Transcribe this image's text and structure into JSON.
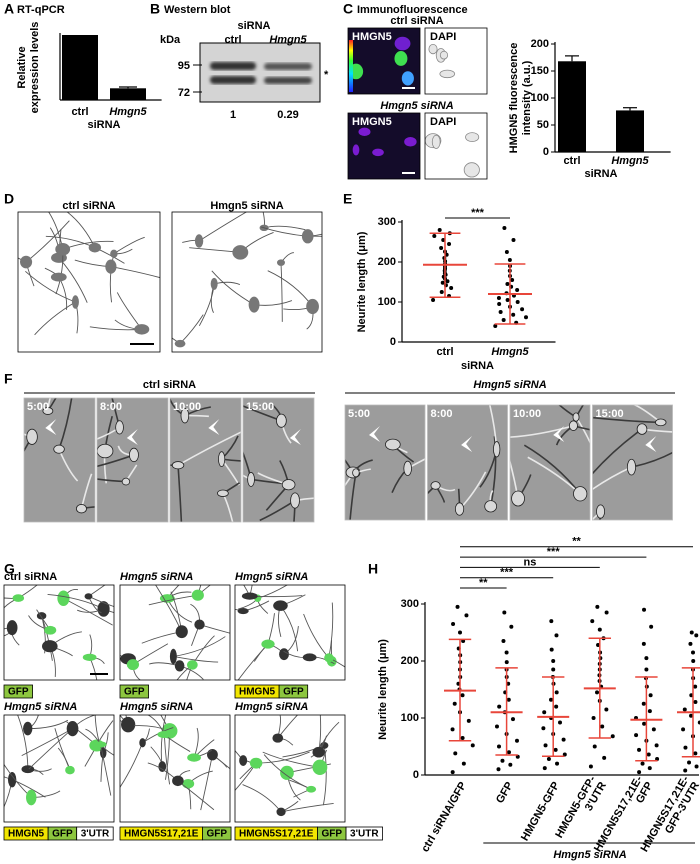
{
  "panels": {
    "A": {
      "letter": "A",
      "title": "RT-qPCR"
    },
    "B": {
      "letter": "B",
      "title": "Western blot",
      "treatment": "siRNA",
      "unit": "kDa",
      "lanes": [
        "ctrl",
        "Hmgn5"
      ],
      "markers": [
        95,
        72
      ],
      "band_note": "*",
      "ratios": [
        1,
        0.29
      ]
    },
    "C": {
      "letter": "C",
      "title": "Immunofluorescence",
      "rows": [
        {
          "label": "ctrl siRNA",
          "channels": [
            "HMGN5",
            "DAPI"
          ]
        },
        {
          "label": "Hmgn5 siRNA",
          "channels": [
            "HMGN5",
            "DAPI"
          ]
        }
      ]
    },
    "D": {
      "letter": "D",
      "images": [
        "ctrl siRNA",
        "Hmgn5 siRNA"
      ]
    },
    "E": {
      "letter": "E"
    },
    "F": {
      "letter": "F",
      "groups": [
        {
          "label": "ctrl siRNA",
          "times": [
            "5:00",
            "8:00",
            "10:00",
            "15:00"
          ]
        },
        {
          "label": "Hmgn5 siRNA",
          "times": [
            "5:00",
            "8:00",
            "10:00",
            "15:00"
          ]
        }
      ]
    },
    "G": {
      "letter": "G",
      "images": [
        {
          "label": "ctrl siRNA",
          "construct": [
            {
              "text": "GFP",
              "color": "#8dc63f"
            }
          ]
        },
        {
          "label": "Hmgn5 siRNA",
          "construct": [
            {
              "text": "GFP",
              "color": "#8dc63f"
            }
          ]
        },
        {
          "label": "Hmgn5 siRNA",
          "construct": [
            {
              "text": "HMGN5",
              "color": "#f2e600"
            },
            {
              "text": "GFP",
              "color": "#8dc63f"
            }
          ]
        },
        {
          "label": "Hmgn5 siRNA",
          "construct": [
            {
              "text": "HMGN5",
              "color": "#f2e600"
            },
            {
              "text": "GFP",
              "color": "#8dc63f"
            },
            {
              "text": "3'UTR",
              "color": "#ffffff"
            }
          ]
        },
        {
          "label": "Hmgn5 siRNA",
          "construct": [
            {
              "text": "HMGN5S17,21E",
              "color": "#f2e600"
            },
            {
              "text": "GFP",
              "color": "#8dc63f"
            }
          ]
        },
        {
          "label": "Hmgn5 siRNA",
          "construct": [
            {
              "text": "HMGN5S17,21E",
              "color": "#f2e600"
            },
            {
              "text": "GFP",
              "color": "#8dc63f"
            },
            {
              "text": "3'UTR",
              "color": "#ffffff"
            }
          ]
        }
      ]
    },
    "H": {
      "letter": "H"
    }
  },
  "chart_data": [
    {
      "type": "bar",
      "categories": [
        "ctrl",
        "Hmgn5"
      ],
      "values": [
        100,
        18
      ],
      "errors": [
        null,
        2
      ],
      "ylabel": [
        "Relative",
        "expression levels"
      ],
      "xlabel": "siRNA",
      "ylim": [
        0,
        100
      ],
      "color": "#000000"
    },
    {
      "type": "bar",
      "categories": [
        "ctrl",
        "Hmgn5"
      ],
      "values": [
        168,
        77
      ],
      "errors": [
        10,
        5
      ],
      "ylabel": [
        "HMGN5 fluorescence",
        "intensity (a.u.)"
      ],
      "xlabel": "siRNA",
      "ylim": [
        0,
        200
      ],
      "yticks": [
        0,
        50,
        100,
        150,
        200
      ],
      "color": "#000000"
    },
    {
      "type": "dotplot",
      "categories": [
        "ctrl",
        "Hmgn5"
      ],
      "xlabel": "siRNA",
      "ylabel": "Neurite length (μm)",
      "ylim": [
        0,
        300
      ],
      "yticks": [
        0,
        100,
        200,
        300
      ],
      "point_color": "#000000",
      "stat_color": "#e8463a",
      "means": [
        193,
        120
      ],
      "lower": [
        112,
        45
      ],
      "upper": [
        272,
        195
      ],
      "significance": [
        "***"
      ],
      "points": [
        [
          105,
          115,
          125,
          135,
          142,
          148,
          152,
          158,
          163,
          168,
          172,
          178,
          183,
          188,
          195,
          202,
          210,
          218,
          226,
          235,
          245,
          255,
          265,
          272,
          280
        ],
        [
          40,
          48,
          55,
          62,
          68,
          75,
          82,
          88,
          95,
          100,
          105,
          110,
          116,
          122,
          130,
          138,
          145,
          155,
          165,
          178,
          190,
          205,
          225,
          255,
          285
        ]
      ]
    },
    {
      "type": "dotplot",
      "categories": [
        [
          "ctrl siRNA/GFP"
        ],
        [
          "GFP"
        ],
        [
          "HMGN5-GFP"
        ],
        [
          "HMGN5-GFP-",
          "3'UTR"
        ],
        [
          "HMGN5S17,21E-",
          "GFP"
        ],
        [
          "HMGN5S17,21E-",
          "GFP-3'UTR"
        ]
      ],
      "group_label": "Hmgn5 siRNA",
      "ylabel": "Neurite length (μm)",
      "ylim": [
        0,
        300
      ],
      "yticks": [
        0,
        100,
        200,
        300
      ],
      "point_color": "#000000",
      "stat_color": "#e8463a",
      "means": [
        148,
        110,
        102,
        152,
        97,
        110
      ],
      "lower": [
        60,
        35,
        33,
        65,
        25,
        32
      ],
      "upper": [
        238,
        188,
        172,
        240,
        172,
        188
      ],
      "significance": [
        "**",
        "***",
        "ns",
        "***",
        "**"
      ],
      "points": [
        [
          5,
          20,
          38,
          52,
          65,
          80,
          95,
          110,
          125,
          140,
          150,
          160,
          172,
          185,
          198,
          210,
          222,
          235,
          250,
          265,
          280,
          295
        ],
        [
          10,
          18,
          25,
          32,
          40,
          50,
          60,
          72,
          85,
          98,
          110,
          120,
          132,
          145,
          160,
          172,
          185,
          198,
          215,
          235,
          260,
          285
        ],
        [
          12,
          20,
          28,
          36,
          44,
          52,
          62,
          72,
          82,
          92,
          100,
          110,
          120,
          132,
          145,
          160,
          172,
          185,
          200,
          220,
          245,
          270
        ],
        [
          15,
          30,
          50,
          68,
          85,
          100,
          115,
          130,
          145,
          155,
          165,
          175,
          185,
          195,
          205,
          215,
          228,
          240,
          255,
          270,
          285,
          295
        ],
        [
          5,
          12,
          20,
          28,
          36,
          44,
          52,
          60,
          70,
          80,
          90,
          100,
          112,
          125,
          140,
          155,
          170,
          185,
          205,
          230,
          260,
          290
        ],
        [
          8,
          15,
          22,
          30,
          38,
          48,
          58,
          68,
          80,
          92,
          104,
          115,
          128,
          140,
          155,
          170,
          185,
          200,
          215,
          230,
          245,
          250
        ]
      ]
    }
  ]
}
